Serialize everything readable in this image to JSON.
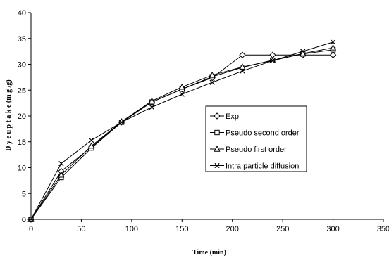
{
  "chart_data": {
    "type": "line",
    "xlabel": "Time (min)",
    "ylabel": "D y e u p t a k e  (m g /g)",
    "xlim": [
      0,
      350
    ],
    "ylim": [
      0,
      40
    ],
    "x_ticks": [
      0,
      50,
      100,
      150,
      200,
      250,
      300,
      350
    ],
    "y_ticks": [
      0,
      5,
      10,
      15,
      20,
      25,
      30,
      35,
      40
    ],
    "grid": false,
    "legend_position": "center-right",
    "x": [
      0,
      30,
      60,
      90,
      120,
      150,
      180,
      210,
      240,
      270,
      300
    ],
    "series": [
      {
        "name": "Exp",
        "marker": "diamond",
        "values": [
          0,
          9.3,
          14.0,
          18.8,
          22.7,
          25.2,
          27.4,
          31.8,
          31.8,
          31.8,
          31.8
        ]
      },
      {
        "name": "Pseudo second order",
        "marker": "square",
        "values": [
          0,
          8.1,
          13.8,
          18.8,
          22.7,
          25.2,
          27.6,
          29.4,
          30.8,
          32.0,
          32.8
        ]
      },
      {
        "name": "Pseudo first order",
        "marker": "triangle",
        "values": [
          0,
          8.6,
          14.2,
          18.9,
          22.9,
          25.6,
          27.9,
          29.5,
          30.7,
          32.1,
          33.2
        ]
      },
      {
        "name": "Intra particle diffusion",
        "marker": "x",
        "values": [
          0,
          10.8,
          15.3,
          18.8,
          21.7,
          24.2,
          26.5,
          28.7,
          30.7,
          32.5,
          34.3
        ]
      }
    ]
  }
}
